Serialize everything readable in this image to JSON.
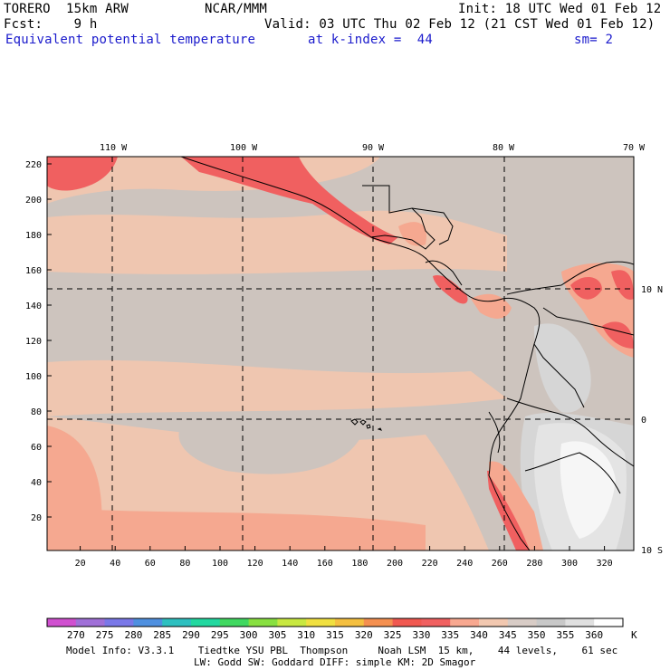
{
  "header": {
    "model": "TORERO  15km ARW",
    "center": "NCAR/MMM",
    "init": "Init: 18 UTC Wed 01 Feb 12",
    "fcst": "Fcst:    9 h",
    "valid": "Valid: 03 UTC Thu 02 Feb 12 (21 CST Wed 01 Feb 12)",
    "field": "Equivalent potential temperature",
    "level": "at k-index =  44",
    "smooth": "sm= 2"
  },
  "map": {
    "top_lon_labels": [
      "110 W",
      "100 W",
      "90 W",
      "80 W",
      "70 W"
    ],
    "right_lat_labels": [
      "10 N",
      "0",
      "10 S"
    ],
    "y_ticks": [
      "220",
      "200",
      "180",
      "160",
      "140",
      "120",
      "100",
      "80",
      "60",
      "40",
      "20"
    ],
    "x_ticks": [
      "20",
      "40",
      "60",
      "80",
      "100",
      "120",
      "140",
      "160",
      "180",
      "200",
      "220",
      "240",
      "260",
      "280",
      "300",
      "320"
    ],
    "ocean_color": "#cdc4be",
    "land_line_color": "#000000"
  },
  "colorbar": {
    "labels": [
      "270",
      "275",
      "280",
      "285",
      "290",
      "295",
      "300",
      "305",
      "310",
      "315",
      "320",
      "325",
      "330",
      "335",
      "340",
      "345",
      "350",
      "355",
      "360"
    ],
    "unit": "K",
    "colors": [
      "#d050d0",
      "#a070d8",
      "#7a78e8",
      "#4f90e0",
      "#2ec0c0",
      "#22d8a0",
      "#40d860",
      "#88e040",
      "#c8e840",
      "#f0e040",
      "#f5c040",
      "#f59050",
      "#f05850",
      "#f06060",
      "#f8a890",
      "#f2c8b0",
      "#d8ccc6",
      "#c8c8c8",
      "#e0e0e0",
      "#ffffff"
    ]
  },
  "footer": {
    "line1": "Model Info: V3.3.1    Tiedtke YSU PBL  Thompson     Noah LSM  15 km,    44 levels,    61 sec",
    "line2": "LW: Godd SW: Goddard DIFF: simple KM: 2D Smagor"
  }
}
